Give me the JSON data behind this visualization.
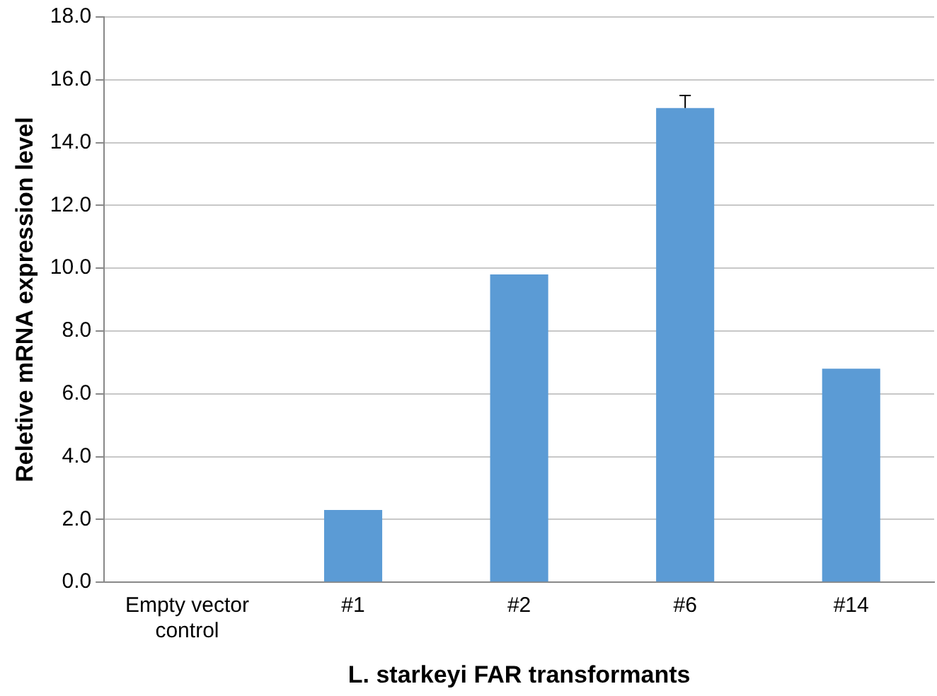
{
  "chart_data": {
    "type": "bar",
    "xlabel": "L. starkeyi FAR transformants",
    "ylabel": "Reletive mRNA expression level",
    "categories": [
      "Empty vector control",
      "#1",
      "#2",
      "#6",
      "#14"
    ],
    "values": [
      0,
      2.3,
      9.8,
      15.1,
      6.8
    ],
    "color": "#5b9bd5",
    "errors": [
      null,
      null,
      null,
      [
        15.1,
        15.5
      ],
      null
    ],
    "ylim": [
      0,
      18
    ],
    "yticks": [
      {
        "value": 0,
        "label": "0.0"
      },
      {
        "value": 2,
        "label": "2.0"
      },
      {
        "value": 4,
        "label": "4.0"
      },
      {
        "value": 6,
        "label": "6.0"
      },
      {
        "value": 8,
        "label": "8.0"
      },
      {
        "value": 10,
        "label": "10.0"
      },
      {
        "value": 12,
        "label": "12.0"
      },
      {
        "value": 14,
        "label": "14.0"
      },
      {
        "value": 16,
        "label": "16.0"
      },
      {
        "value": 18,
        "label": "18.0"
      }
    ],
    "grid": "y",
    "legend": false
  }
}
